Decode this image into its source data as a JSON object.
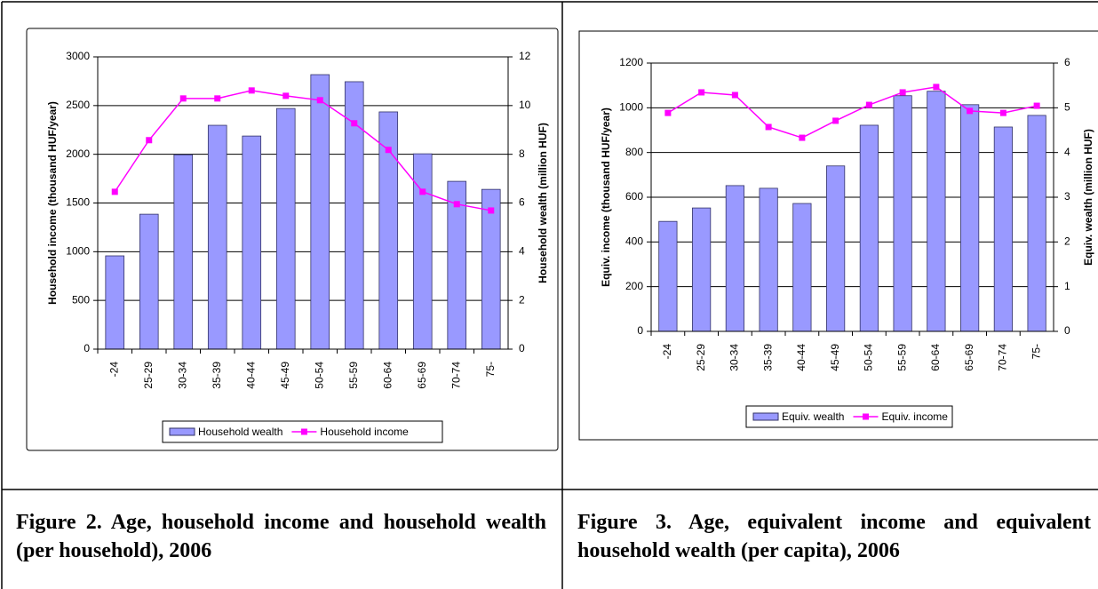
{
  "chart_data": [
    {
      "type": "bar",
      "caption": "Figure 2. Age, household income and household wealth (per household), 2006",
      "y_label": "Household income (thousand HUF/year)",
      "y2_label": "Household wealth (million HUF)",
      "categories": [
        "-24",
        "25-29",
        "30-34",
        "35-39",
        "40-44",
        "45-49",
        "50-54",
        "55-59",
        "60-64",
        "65-69",
        "70-74",
        "75-"
      ],
      "ylim": [
        0,
        3000
      ],
      "yticks": [
        0,
        500,
        1000,
        1500,
        2000,
        2500,
        3000
      ],
      "y2lim": [
        0,
        12
      ],
      "y2ticks": [
        0,
        2,
        4,
        6,
        8,
        10,
        12
      ],
      "grid": true,
      "series": [
        {
          "name": "Household wealth",
          "type": "bar",
          "axis": "y2",
          "color": "#9999ff",
          "values": [
            3.83,
            5.54,
            7.98,
            9.19,
            8.75,
            9.88,
            11.27,
            10.98,
            9.74,
            8.02,
            6.89,
            6.56
          ]
        },
        {
          "name": "Household income",
          "type": "line",
          "axis": "y",
          "color": "#ff00ff",
          "values": [
            1615,
            2145,
            2573,
            2573,
            2655,
            2600,
            2555,
            2318,
            2045,
            1615,
            1488,
            1423
          ]
        }
      ]
    },
    {
      "type": "bar",
      "caption": "Figure 3.  Age, equivalent income and equivalent household wealth (per capita), 2006",
      "y_label": "Equiv. income (thousand HUF/year)",
      "y2_label": "Equiv. wealth (million HUF)",
      "categories": [
        "-24",
        "25-29",
        "30-34",
        "35-39",
        "40-44",
        "45-49",
        "50-54",
        "55-59",
        "60-64",
        "65-69",
        "70-74",
        "75-"
      ],
      "ylim": [
        0,
        1200
      ],
      "yticks": [
        0,
        200,
        400,
        600,
        800,
        1000,
        1200
      ],
      "y2lim": [
        0,
        6
      ],
      "y2ticks": [
        0,
        1,
        2,
        3,
        4,
        5,
        6
      ],
      "grid": true,
      "series": [
        {
          "name": "Equiv. wealth",
          "type": "bar",
          "axis": "y2",
          "color": "#9999ff",
          "values": [
            2.46,
            2.76,
            3.26,
            3.2,
            2.86,
            3.7,
            4.61,
            5.27,
            5.37,
            5.07,
            4.57,
            4.83
          ]
        },
        {
          "name": "Equiv. income",
          "type": "line",
          "axis": "y",
          "color": "#ff00ff",
          "values": [
            977,
            1069,
            1057,
            914,
            866,
            942,
            1013,
            1069,
            1093,
            986,
            977,
            1009
          ]
        }
      ]
    }
  ]
}
